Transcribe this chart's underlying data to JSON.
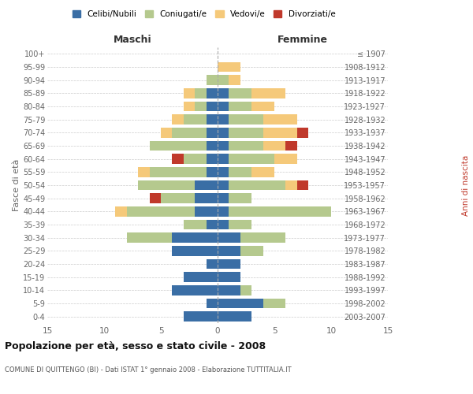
{
  "age_groups": [
    "0-4",
    "5-9",
    "10-14",
    "15-19",
    "20-24",
    "25-29",
    "30-34",
    "35-39",
    "40-44",
    "45-49",
    "50-54",
    "55-59",
    "60-64",
    "65-69",
    "70-74",
    "75-79",
    "80-84",
    "85-89",
    "90-94",
    "95-99",
    "100+"
  ],
  "birth_years": [
    "2003-2007",
    "1998-2002",
    "1993-1997",
    "1988-1992",
    "1983-1987",
    "1978-1982",
    "1973-1977",
    "1968-1972",
    "1963-1967",
    "1958-1962",
    "1953-1957",
    "1948-1952",
    "1943-1947",
    "1938-1942",
    "1933-1937",
    "1928-1932",
    "1923-1927",
    "1918-1922",
    "1913-1917",
    "1908-1912",
    "≤ 1907"
  ],
  "maschi": {
    "celibi": [
      3,
      1,
      4,
      3,
      1,
      4,
      4,
      1,
      2,
      2,
      2,
      1,
      1,
      1,
      1,
      1,
      1,
      1,
      0,
      0,
      0
    ],
    "coniugati": [
      0,
      0,
      0,
      0,
      0,
      0,
      4,
      2,
      6,
      3,
      5,
      5,
      2,
      5,
      3,
      2,
      1,
      1,
      1,
      0,
      0
    ],
    "vedovi": [
      0,
      0,
      0,
      0,
      0,
      0,
      0,
      0,
      1,
      0,
      0,
      1,
      0,
      0,
      1,
      1,
      1,
      1,
      0,
      0,
      0
    ],
    "divorziati": [
      0,
      0,
      0,
      0,
      0,
      0,
      0,
      0,
      0,
      1,
      0,
      0,
      1,
      0,
      0,
      0,
      0,
      0,
      0,
      0,
      0
    ]
  },
  "femmine": {
    "nubili": [
      3,
      4,
      2,
      2,
      2,
      2,
      2,
      1,
      1,
      1,
      1,
      1,
      1,
      1,
      1,
      1,
      1,
      1,
      0,
      0,
      0
    ],
    "coniugate": [
      0,
      2,
      1,
      0,
      0,
      2,
      4,
      2,
      9,
      2,
      5,
      2,
      4,
      3,
      3,
      3,
      2,
      2,
      1,
      0,
      0
    ],
    "vedove": [
      0,
      0,
      0,
      0,
      0,
      0,
      0,
      0,
      0,
      0,
      1,
      2,
      2,
      2,
      3,
      3,
      2,
      3,
      1,
      2,
      0
    ],
    "divorziate": [
      0,
      0,
      0,
      0,
      0,
      0,
      0,
      0,
      0,
      0,
      1,
      0,
      0,
      1,
      1,
      0,
      0,
      0,
      0,
      0,
      0
    ]
  },
  "colors": {
    "celibi_nubili": "#3a6ea5",
    "coniugati": "#b5c98e",
    "vedovi": "#f5c97a",
    "divorziati": "#c0392b"
  },
  "xlim": 15,
  "title": "Popolazione per età, sesso e stato civile - 2008",
  "subtitle": "COMUNE DI QUITTENGO (BI) - Dati ISTAT 1° gennaio 2008 - Elaborazione TUTTITALIA.IT",
  "ylabel_left": "Fasce di età",
  "ylabel_right": "Anni di nascita",
  "xlabel_maschi": "Maschi",
  "xlabel_femmine": "Femmine",
  "legend_labels": [
    "Celibi/Nubili",
    "Coniugati/e",
    "Vedovi/e",
    "Divorziati/e"
  ],
  "bg_color": "#ffffff",
  "grid_color": "#cccccc",
  "axis_label_color": "#666666"
}
